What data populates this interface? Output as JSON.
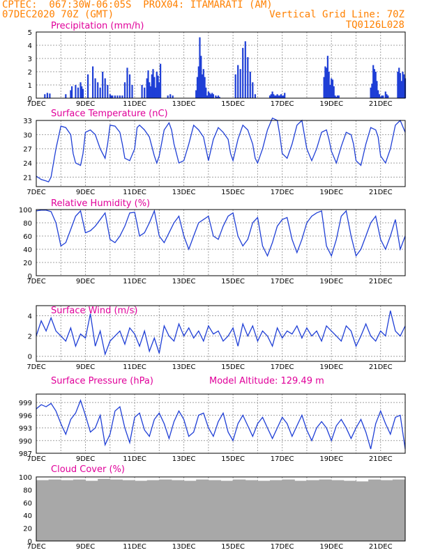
{
  "header": {
    "line1": "CPTEC:  067:30W-06:05S  PROX04: ITAMARATI (AM)",
    "line2_left": "07DEC2020 70Z (GMT)",
    "line2_right": "Vertical Grid Line: 70Z",
    "line3_right": "TQ0126L028"
  },
  "colors": {
    "header": "#ff8000",
    "title": "#e0009a",
    "series": "#1f3fd6",
    "cloud": "#a8a8a8",
    "grid": "#a0a0a0"
  },
  "chart_data": [
    {
      "type": "bar",
      "title": "Precipitation (mm/h)",
      "ylim": [
        0,
        5
      ],
      "yticks": [
        0,
        1,
        2,
        3,
        4,
        5
      ],
      "xlim": [
        0,
        15
      ],
      "xticks": [
        "7DEC",
        "9DEC",
        "11DEC",
        "13DEC",
        "15DEC",
        "17DEC",
        "19DEC",
        "21DEC"
      ],
      "x": [
        0.35,
        0.45,
        0.55,
        1.2,
        1.4,
        1.45,
        1.6,
        1.7,
        1.8,
        1.85,
        1.9,
        2.1,
        2.3,
        2.4,
        2.5,
        2.6,
        2.7,
        2.8,
        2.9,
        3.0,
        3.05,
        3.1,
        3.2,
        3.3,
        3.4,
        3.5,
        3.6,
        3.7,
        3.8,
        3.9,
        4.3,
        4.4,
        4.5,
        4.55,
        4.6,
        4.65,
        4.7,
        4.75,
        4.8,
        4.85,
        4.9,
        4.95,
        5.0,
        5.05,
        5.35,
        5.45,
        5.55,
        6.5,
        6.55,
        6.6,
        6.65,
        6.7,
        6.75,
        6.8,
        6.85,
        6.9,
        6.95,
        7.0,
        7.05,
        7.1,
        7.15,
        7.2,
        7.3,
        7.35,
        7.4,
        7.45,
        8.1,
        8.2,
        8.3,
        8.4,
        8.5,
        8.6,
        8.7,
        8.8,
        8.9,
        9.5,
        9.55,
        9.6,
        9.65,
        9.7,
        9.75,
        9.8,
        9.85,
        9.9,
        9.95,
        10.0,
        10.05,
        10.1,
        11.7,
        11.75,
        11.8,
        11.85,
        11.9,
        11.95,
        12.0,
        12.05,
        12.1,
        12.15,
        12.2,
        12.25,
        12.3,
        13.6,
        13.65,
        13.7,
        13.75,
        13.8,
        13.85,
        13.9,
        13.95,
        14.0,
        14.05,
        14.1,
        14.2,
        14.25,
        14.3,
        14.7,
        14.75,
        14.8,
        14.85,
        14.9,
        14.95,
        15.0
      ],
      "values": [
        0.3,
        0.4,
        0.35,
        0.3,
        0.6,
        0.9,
        1.0,
        0.8,
        1.2,
        0.9,
        0.7,
        1.8,
        2.4,
        1.5,
        1.2,
        0.8,
        2.0,
        1.5,
        1.0,
        0.3,
        0.2,
        0.2,
        0.2,
        0.2,
        0.2,
        0.2,
        1.2,
        2.3,
        1.8,
        1.0,
        1.0,
        0.8,
        1.5,
        2.1,
        1.2,
        0.9,
        1.8,
        2.2,
        1.6,
        0.8,
        2.0,
        1.7,
        1.2,
        2.6,
        0.2,
        0.3,
        0.2,
        0.6,
        1.6,
        2.4,
        4.6,
        3.2,
        1.8,
        2.2,
        1.6,
        0.8,
        0.2,
        0.5,
        0.4,
        0.3,
        0.4,
        0.3,
        0.2,
        0.1,
        0.2,
        0.1,
        1.8,
        2.5,
        2.2,
        3.8,
        4.3,
        3.1,
        2.0,
        1.2,
        0.3,
        0.2,
        0.3,
        0.5,
        0.3,
        0.2,
        0.2,
        0.3,
        0.2,
        0.2,
        0.3,
        0.2,
        0.2,
        0.4,
        1.6,
        2.4,
        2.3,
        3.2,
        2.0,
        1.0,
        1.5,
        1.4,
        0.9,
        0.2,
        0.1,
        0.2,
        0.2,
        0.8,
        1.1,
        2.5,
        2.2,
        2.0,
        1.3,
        0.6,
        0.3,
        0.1,
        0.2,
        0.2,
        0.5,
        0.3,
        0.2,
        2.0,
        2.3,
        1.9,
        1.3,
        2.0,
        1.8,
        1.5
      ],
      "xlabel": "",
      "ylabel": ""
    },
    {
      "type": "line",
      "title": "Surface Temperature (nC)",
      "ylim": [
        19,
        33
      ],
      "yticks": [
        21,
        24,
        27,
        30,
        33
      ],
      "xlim": [
        0,
        15
      ],
      "xticks": [
        "7DEC",
        "9DEC",
        "11DEC",
        "13DEC",
        "15DEC",
        "17DEC",
        "19DEC",
        "21DEC"
      ],
      "x": [
        0,
        0.2,
        0.4,
        0.5,
        0.6,
        0.8,
        1.0,
        1.2,
        1.4,
        1.5,
        1.6,
        1.8,
        1.9,
        2.0,
        2.2,
        2.4,
        2.6,
        2.8,
        2.9,
        3.0,
        3.2,
        3.4,
        3.5,
        3.6,
        3.8,
        4.0,
        4.1,
        4.2,
        4.4,
        4.6,
        4.8,
        4.9,
        5.0,
        5.2,
        5.4,
        5.5,
        5.6,
        5.8,
        6.0,
        6.2,
        6.4,
        6.6,
        6.8,
        6.9,
        7.0,
        7.2,
        7.4,
        7.6,
        7.8,
        7.9,
        8.0,
        8.2,
        8.4,
        8.6,
        8.8,
        8.9,
        9.0,
        9.2,
        9.4,
        9.6,
        9.8,
        9.9,
        10.0,
        10.2,
        10.4,
        10.6,
        10.8,
        10.9,
        11.0,
        11.2,
        11.4,
        11.6,
        11.8,
        11.9,
        12.0,
        12.2,
        12.4,
        12.6,
        12.8,
        12.9,
        13.0,
        13.2,
        13.4,
        13.6,
        13.8,
        13.9,
        14.0,
        14.2,
        14.4,
        14.6,
        14.8,
        15.0
      ],
      "values": [
        21.2,
        20.5,
        20.2,
        20.0,
        21.0,
        27.0,
        31.8,
        31.5,
        30.0,
        26.0,
        24.0,
        23.5,
        26.0,
        30.5,
        31.0,
        30.0,
        27.0,
        25.0,
        28.0,
        32.0,
        31.8,
        30.5,
        28.0,
        25.0,
        24.5,
        27.0,
        31.5,
        32.0,
        31.0,
        29.5,
        25.5,
        24.0,
        25.5,
        31.0,
        32.5,
        31.0,
        28.0,
        24.0,
        24.5,
        28.0,
        32.0,
        31.0,
        29.5,
        27.0,
        24.5,
        29.0,
        31.5,
        30.5,
        29.0,
        26.0,
        24.5,
        29.0,
        32.0,
        31.0,
        28.0,
        25.0,
        24.0,
        27.0,
        31.0,
        33.5,
        33.0,
        30.0,
        26.0,
        25.0,
        28.0,
        32.0,
        33.0,
        30.0,
        27.0,
        24.5,
        27.0,
        30.5,
        31.0,
        29.0,
        26.5,
        24.0,
        27.5,
        30.5,
        30.0,
        28.0,
        24.5,
        23.5,
        28.0,
        31.5,
        31.0,
        29.5,
        25.5,
        24.0,
        27.0,
        32.0,
        33.0,
        30.5
      ],
      "xlabel": "",
      "ylabel": ""
    },
    {
      "type": "line",
      "title": "Relative Humidity (%)",
      "ylim": [
        0,
        100
      ],
      "yticks": [
        0,
        20,
        40,
        60,
        80,
        100
      ],
      "xlim": [
        0,
        15
      ],
      "xticks": [
        "7DEC",
        "9DEC",
        "11DEC",
        "13DEC",
        "15DEC",
        "17DEC",
        "19DEC",
        "21DEC"
      ],
      "x": [
        0,
        0.2,
        0.4,
        0.6,
        0.8,
        1.0,
        1.2,
        1.4,
        1.6,
        1.8,
        2.0,
        2.2,
        2.4,
        2.6,
        2.8,
        3.0,
        3.2,
        3.4,
        3.6,
        3.8,
        4.0,
        4.2,
        4.4,
        4.6,
        4.8,
        5.0,
        5.2,
        5.4,
        5.6,
        5.8,
        6.0,
        6.2,
        6.4,
        6.6,
        6.8,
        7.0,
        7.2,
        7.4,
        7.6,
        7.8,
        8.0,
        8.2,
        8.4,
        8.6,
        8.8,
        9.0,
        9.2,
        9.4,
        9.6,
        9.8,
        10.0,
        10.2,
        10.4,
        10.6,
        10.8,
        11.0,
        11.2,
        11.4,
        11.6,
        11.8,
        12.0,
        12.2,
        12.4,
        12.6,
        12.8,
        13.0,
        13.2,
        13.4,
        13.6,
        13.8,
        14.0,
        14.2,
        14.4,
        14.6,
        14.8,
        15.0
      ],
      "values": [
        98,
        99,
        99,
        97,
        80,
        45,
        50,
        70,
        90,
        98,
        65,
        68,
        75,
        85,
        95,
        55,
        50,
        60,
        75,
        95,
        96,
        60,
        65,
        80,
        98,
        60,
        50,
        65,
        80,
        90,
        60,
        40,
        60,
        80,
        85,
        90,
        60,
        55,
        75,
        90,
        95,
        60,
        45,
        55,
        80,
        88,
        45,
        30,
        50,
        75,
        85,
        88,
        55,
        35,
        55,
        80,
        90,
        95,
        98,
        45,
        30,
        55,
        90,
        98,
        60,
        30,
        40,
        60,
        80,
        90,
        55,
        40,
        60,
        85,
        40,
        60
      ],
      "xlabel": "",
      "ylabel": ""
    },
    {
      "type": "line",
      "title": "Surface Wind (m/s)",
      "ylim": [
        -0.5,
        5
      ],
      "yticks": [
        0,
        2,
        4
      ],
      "xlim": [
        0,
        15
      ],
      "xticks": [
        "7DEC",
        "9DEC",
        "11DEC",
        "13DEC",
        "15DEC",
        "17DEC",
        "19DEC",
        "21DEC"
      ],
      "x": [
        0,
        0.2,
        0.4,
        0.6,
        0.8,
        1.0,
        1.2,
        1.4,
        1.6,
        1.8,
        2.0,
        2.2,
        2.4,
        2.6,
        2.8,
        3.0,
        3.2,
        3.4,
        3.6,
        3.8,
        4.0,
        4.2,
        4.4,
        4.6,
        4.8,
        5.0,
        5.2,
        5.4,
        5.6,
        5.8,
        6.0,
        6.2,
        6.4,
        6.6,
        6.8,
        7.0,
        7.2,
        7.4,
        7.6,
        7.8,
        8.0,
        8.2,
        8.4,
        8.6,
        8.8,
        9.0,
        9.2,
        9.4,
        9.6,
        9.8,
        10.0,
        10.2,
        10.4,
        10.6,
        10.8,
        11.0,
        11.2,
        11.4,
        11.6,
        11.8,
        12.0,
        12.2,
        12.4,
        12.6,
        12.8,
        13.0,
        13.2,
        13.4,
        13.6,
        13.8,
        14.0,
        14.2,
        14.4,
        14.6,
        14.8,
        15.0
      ],
      "values": [
        2.0,
        3.5,
        2.5,
        3.8,
        2.5,
        2.0,
        1.5,
        2.8,
        1.0,
        2.2,
        1.8,
        4.2,
        1.0,
        2.5,
        0.2,
        1.5,
        2.0,
        2.5,
        1.2,
        2.8,
        2.2,
        1.0,
        2.5,
        0.5,
        1.8,
        0.3,
        3.0,
        2.0,
        1.5,
        3.2,
        2.0,
        2.8,
        1.8,
        2.5,
        1.5,
        3.0,
        2.2,
        2.5,
        1.5,
        2.0,
        2.8,
        1.0,
        3.2,
        2.0,
        3.0,
        1.5,
        2.5,
        2.0,
        1.0,
        2.8,
        1.8,
        2.5,
        2.2,
        3.0,
        1.8,
        2.8,
        2.0,
        2.5,
        1.5,
        3.0,
        2.5,
        2.0,
        1.5,
        3.0,
        2.5,
        1.0,
        2.0,
        3.2,
        2.0,
        1.5,
        2.5,
        2.0,
        4.5,
        2.5,
        2.0,
        3.0
      ],
      "xlabel": "",
      "ylabel": ""
    },
    {
      "type": "line",
      "title": "Surface Pressure (hPa)",
      "annotation": "Model Altitude: 129.49  m",
      "ylim": [
        987,
        1001
      ],
      "yticks": [
        987,
        990,
        993,
        996,
        999
      ],
      "xlim": [
        0,
        15
      ],
      "xticks": [
        "7DEC",
        "9DEC",
        "11DEC",
        "13DEC",
        "15DEC",
        "17DEC",
        "19DEC",
        "21DEC"
      ],
      "x": [
        0,
        0.2,
        0.4,
        0.6,
        0.8,
        1.0,
        1.2,
        1.4,
        1.6,
        1.8,
        2.0,
        2.2,
        2.4,
        2.6,
        2.8,
        3.0,
        3.2,
        3.4,
        3.6,
        3.8,
        4.0,
        4.2,
        4.4,
        4.6,
        4.8,
        5.0,
        5.2,
        5.4,
        5.6,
        5.8,
        6.0,
        6.2,
        6.4,
        6.6,
        6.8,
        7.0,
        7.2,
        7.4,
        7.6,
        7.8,
        8.0,
        8.2,
        8.4,
        8.6,
        8.8,
        9.0,
        9.2,
        9.4,
        9.6,
        9.8,
        10.0,
        10.2,
        10.4,
        10.6,
        10.8,
        11.0,
        11.2,
        11.4,
        11.6,
        11.8,
        12.0,
        12.2,
        12.4,
        12.6,
        12.8,
        13.0,
        13.2,
        13.4,
        13.6,
        13.8,
        14.0,
        14.2,
        14.4,
        14.6,
        14.8,
        15.0
      ],
      "values": [
        997.5,
        998.5,
        998.0,
        998.8,
        997.0,
        994.0,
        991.5,
        995.0,
        996.5,
        999.5,
        996.0,
        992.0,
        993.0,
        996.0,
        989.0,
        991.5,
        997.0,
        998.0,
        993.0,
        989.5,
        995.5,
        996.5,
        992.5,
        991.0,
        995.0,
        996.5,
        994.0,
        990.5,
        994.5,
        997.0,
        995.0,
        991.0,
        992.0,
        996.0,
        996.5,
        993.0,
        991.0,
        994.5,
        996.5,
        992.0,
        990.0,
        994.0,
        996.0,
        993.5,
        991.0,
        994.0,
        995.5,
        993.0,
        990.5,
        993.0,
        995.5,
        994.0,
        991.0,
        993.5,
        996.0,
        992.5,
        990.0,
        993.0,
        994.5,
        993.0,
        990.0,
        993.5,
        995.0,
        993.0,
        990.5,
        993.0,
        995.0,
        992.0,
        988.0,
        994.0,
        997.0,
        994.0,
        991.5,
        995.5,
        996.0,
        988.0
      ],
      "xlabel": "",
      "ylabel": ""
    },
    {
      "type": "bar",
      "title": "Cloud Cover (%)",
      "ylim": [
        0,
        100
      ],
      "yticks": [
        0,
        20,
        40,
        60,
        80,
        100
      ],
      "xlim": [
        0,
        15
      ],
      "xticks": [
        "7DEC",
        "9DEC",
        "11DEC",
        "13DEC",
        "15DEC",
        "17DEC",
        "19DEC",
        "21DEC"
      ],
      "x": [
        0,
        0.5,
        0.8,
        0.9,
        1.0,
        1.5,
        2.0,
        2.5,
        3.0,
        3.5,
        4.0,
        4.5,
        5.0,
        5.5,
        6.0,
        6.3,
        6.5,
        7.0,
        7.5,
        8.0,
        8.5,
        9.0,
        9.3,
        9.5,
        10.0,
        10.5,
        11.0,
        11.5,
        12.0,
        12.5,
        13.0,
        13.5,
        14.0,
        14.5,
        15.0
      ],
      "values": [
        95,
        96,
        30,
        2,
        95,
        96,
        94,
        97,
        96,
        95,
        94,
        95,
        96,
        95,
        94,
        2,
        96,
        95,
        94,
        96,
        95,
        94,
        20,
        95,
        96,
        94,
        95,
        96,
        95,
        94,
        93,
        96,
        95,
        94,
        96
      ],
      "xlabel": "",
      "ylabel": ""
    }
  ]
}
